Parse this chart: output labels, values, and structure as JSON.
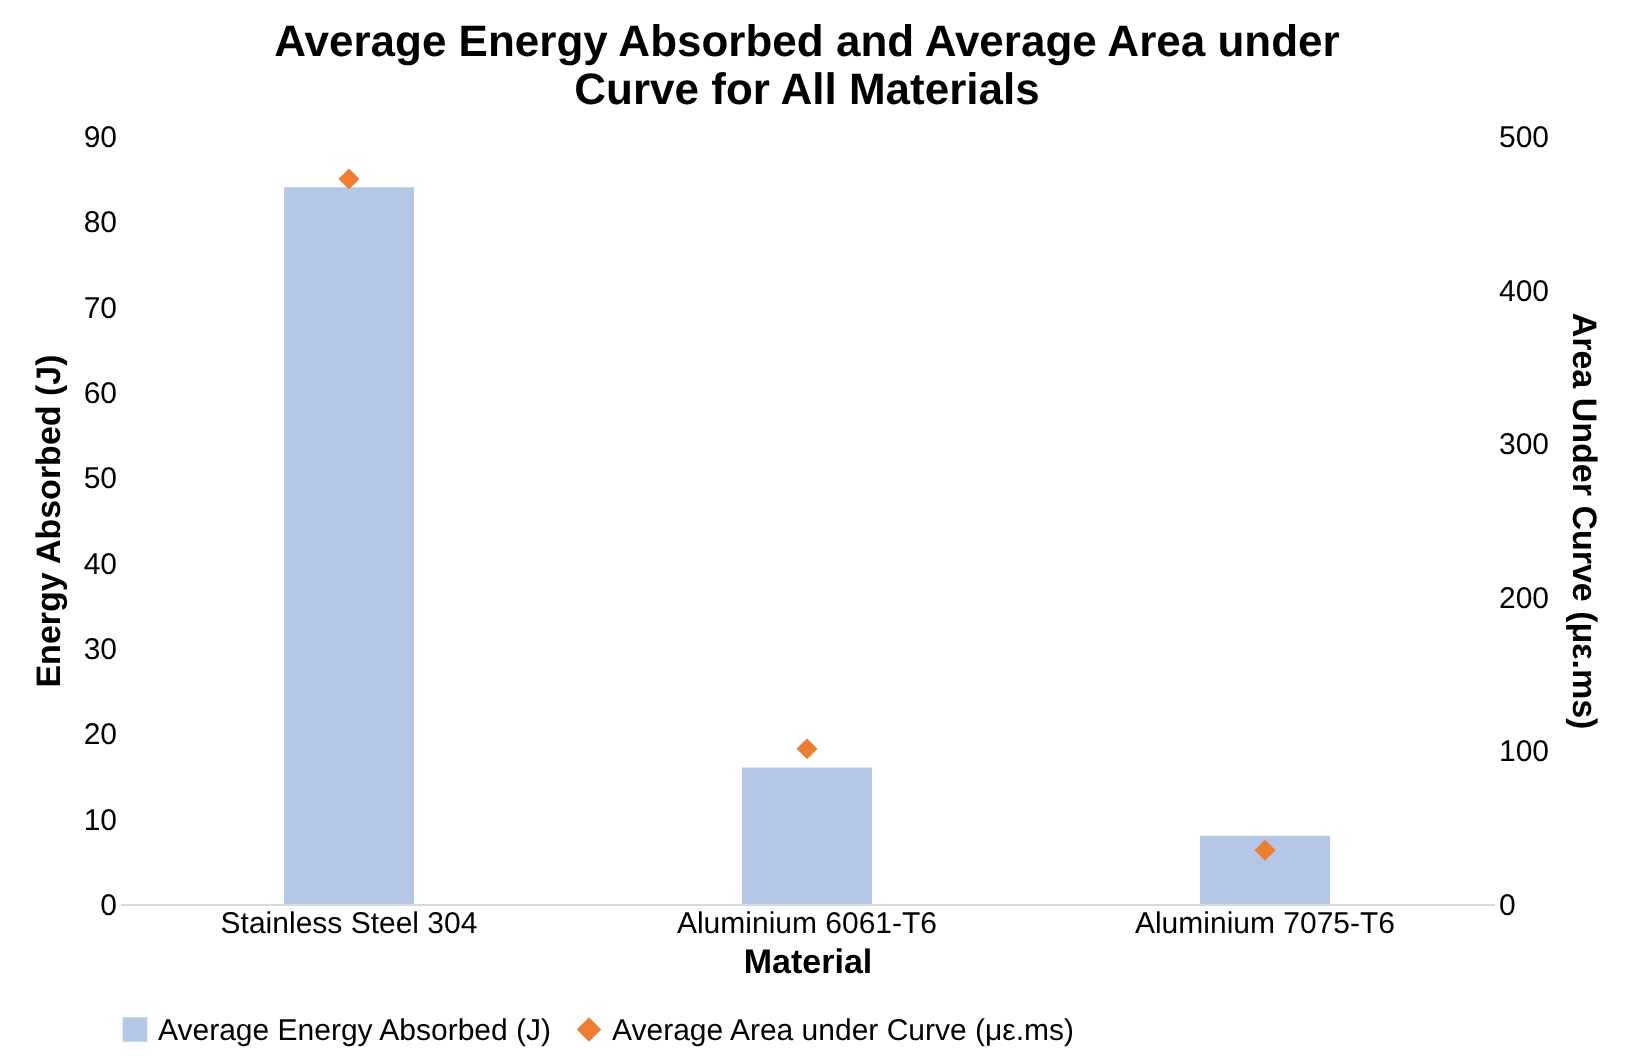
{
  "chart_data": {
    "type": "bar",
    "title": "Average Energy Absorbed and Average Area under Curve for All Materials",
    "xlabel": "Material",
    "ylabel": "Energy Absorbed (J)",
    "y2label": "Area Under Curve (με.ms)",
    "categories": [
      "Stainless Steel 304",
      "Aluminium 6061-T6",
      "Aluminium 7075-T6"
    ],
    "series": [
      {
        "name": "Average Energy Absorbed (J)",
        "color": "#b4c7e7",
        "values": [
          84,
          16,
          8
        ]
      },
      {
        "name": "Average Area under Curve (με.ms)",
        "type": "scatter",
        "axis": "y2",
        "marker": "diamond",
        "color": "#ed7d31",
        "values": [
          472,
          101,
          35
        ]
      }
    ],
    "ylim": [
      0,
      90
    ],
    "yticks": [
      0,
      10,
      20,
      30,
      40,
      50,
      60,
      70,
      80,
      90
    ],
    "y2lim": [
      0,
      500
    ],
    "y2ticks": [
      0,
      100,
      200,
      300,
      400,
      500
    ],
    "grid": false,
    "legend": "bottom"
  }
}
